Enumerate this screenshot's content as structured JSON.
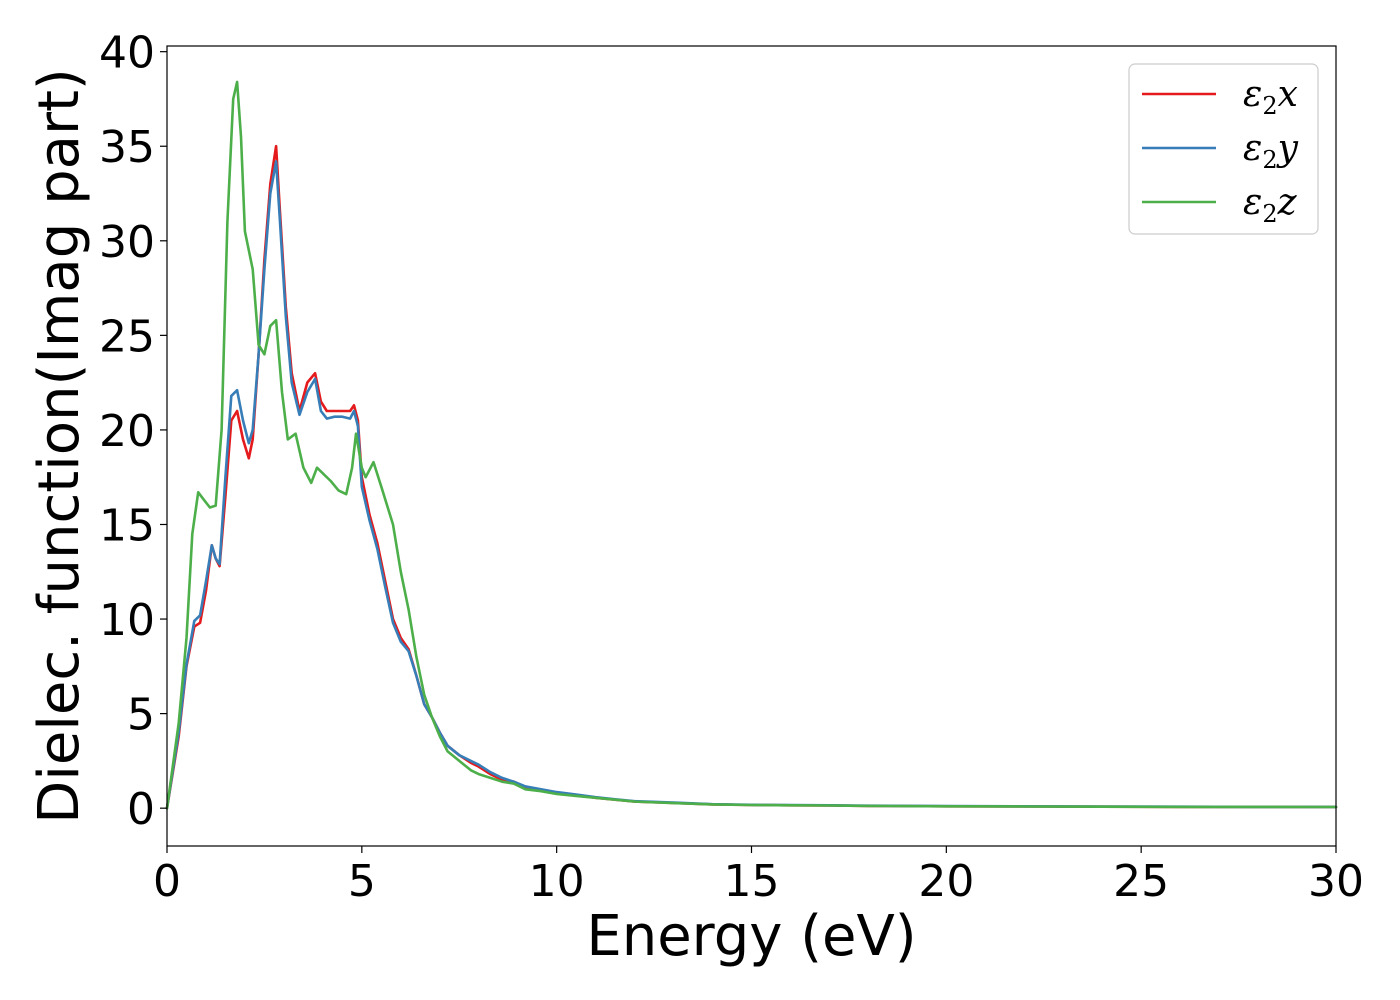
{
  "chart_data": {
    "type": "line",
    "title": "",
    "xlabel": "Energy (eV)",
    "ylabel": "Dielec. function(Imag part)",
    "xlim": [
      0,
      30
    ],
    "ylim": [
      -2,
      40.3
    ],
    "xticks": [
      0,
      5,
      10,
      15,
      20,
      25,
      30
    ],
    "yticks": [
      0,
      5,
      10,
      15,
      20,
      25,
      30,
      35,
      40
    ],
    "grid": false,
    "legend_position": "top-right",
    "series": [
      {
        "name": "ε2x",
        "color": "#e41a1c",
        "x": [
          0,
          0.3,
          0.5,
          0.7,
          0.85,
          1.0,
          1.15,
          1.25,
          1.35,
          1.5,
          1.65,
          1.8,
          1.95,
          2.1,
          2.2,
          2.35,
          2.5,
          2.65,
          2.8,
          2.9,
          3.05,
          3.2,
          3.4,
          3.6,
          3.8,
          3.95,
          4.1,
          4.3,
          4.5,
          4.7,
          4.8,
          4.9,
          5.0,
          5.2,
          5.4,
          5.6,
          5.8,
          6.0,
          6.2,
          6.4,
          6.6,
          6.8,
          7.0,
          7.2,
          7.5,
          7.8,
          8.0,
          8.3,
          8.6,
          8.9,
          9.2,
          9.6,
          10.0,
          10.5,
          11.0,
          11.5,
          12.0,
          13.0,
          14.0,
          15.0,
          16.0,
          17.0,
          18.0,
          20.0,
          22.0,
          24.0,
          26.0,
          28.0,
          30.0
        ],
        "values": [
          0,
          3.8,
          7.5,
          9.6,
          9.8,
          11.5,
          13.9,
          13.2,
          12.8,
          16.5,
          20.5,
          21.0,
          19.5,
          18.5,
          19.5,
          24.0,
          29.0,
          33.0,
          35.0,
          31.5,
          26.5,
          23.0,
          21.0,
          22.5,
          23.0,
          21.5,
          21.0,
          21.0,
          21.0,
          21.0,
          21.3,
          20.5,
          17.5,
          15.5,
          14.0,
          12.0,
          10.0,
          9.0,
          8.4,
          7.0,
          5.5,
          4.8,
          4.0,
          3.3,
          2.8,
          2.4,
          2.2,
          1.8,
          1.5,
          1.4,
          1.1,
          0.95,
          0.8,
          0.7,
          0.55,
          0.45,
          0.35,
          0.28,
          0.2,
          0.17,
          0.15,
          0.14,
          0.12,
          0.1,
          0.09,
          0.08,
          0.07,
          0.07,
          0.06
        ]
      },
      {
        "name": "ε2y",
        "color": "#377eb8",
        "x": [
          0,
          0.3,
          0.5,
          0.7,
          0.85,
          1.0,
          1.15,
          1.25,
          1.35,
          1.5,
          1.65,
          1.8,
          1.95,
          2.1,
          2.2,
          2.35,
          2.5,
          2.65,
          2.8,
          2.9,
          3.05,
          3.2,
          3.4,
          3.6,
          3.8,
          3.95,
          4.1,
          4.3,
          4.5,
          4.7,
          4.8,
          4.9,
          5.0,
          5.2,
          5.4,
          5.6,
          5.8,
          6.0,
          6.2,
          6.4,
          6.6,
          6.8,
          7.0,
          7.2,
          7.5,
          7.8,
          8.0,
          8.3,
          8.6,
          8.9,
          9.2,
          9.6,
          10.0,
          10.5,
          11.0,
          11.5,
          12.0,
          13.0,
          14.0,
          15.0,
          16.0,
          17.0,
          18.0,
          20.0,
          22.0,
          24.0,
          26.0,
          28.0,
          30.0
        ],
        "values": [
          0,
          4.0,
          7.6,
          9.9,
          10.2,
          12.0,
          13.9,
          13.2,
          12.9,
          17.5,
          21.8,
          22.1,
          20.5,
          19.3,
          20.0,
          24.0,
          28.5,
          32.5,
          34.2,
          31.0,
          26.0,
          22.5,
          20.8,
          22.0,
          22.7,
          21.0,
          20.6,
          20.7,
          20.7,
          20.6,
          21.0,
          20.2,
          17.0,
          15.2,
          13.7,
          11.7,
          9.8,
          8.8,
          8.3,
          7.0,
          5.5,
          4.8,
          4.0,
          3.3,
          2.8,
          2.5,
          2.3,
          1.9,
          1.6,
          1.4,
          1.15,
          1.0,
          0.85,
          0.72,
          0.58,
          0.47,
          0.37,
          0.3,
          0.21,
          0.18,
          0.16,
          0.15,
          0.13,
          0.11,
          0.1,
          0.09,
          0.08,
          0.07,
          0.07
        ]
      },
      {
        "name": "ε2z",
        "color": "#4daf4a",
        "x": [
          0,
          0.3,
          0.5,
          0.65,
          0.8,
          0.95,
          1.1,
          1.25,
          1.4,
          1.55,
          1.7,
          1.8,
          1.9,
          2.0,
          2.2,
          2.35,
          2.5,
          2.65,
          2.8,
          2.95,
          3.1,
          3.3,
          3.5,
          3.7,
          3.85,
          4.0,
          4.2,
          4.4,
          4.6,
          4.75,
          4.85,
          5.0,
          5.1,
          5.3,
          5.5,
          5.8,
          6.0,
          6.2,
          6.4,
          6.6,
          6.8,
          7.0,
          7.2,
          7.5,
          7.8,
          8.0,
          8.3,
          8.6,
          8.9,
          9.2,
          9.6,
          10.0,
          10.5,
          11.0,
          11.5,
          12.0,
          13.0,
          14.0,
          15.0,
          16.0,
          17.0,
          18.0,
          20.0,
          22.0,
          24.0,
          26.0,
          28.0,
          30.0
        ],
        "values": [
          0,
          4.5,
          9.0,
          14.5,
          16.7,
          16.3,
          15.9,
          16.0,
          20.0,
          31.0,
          37.5,
          38.4,
          35.5,
          30.5,
          28.5,
          24.5,
          24.0,
          25.5,
          25.8,
          22.0,
          19.5,
          19.8,
          18.0,
          17.2,
          18.0,
          17.7,
          17.3,
          16.8,
          16.6,
          18.0,
          19.8,
          18.0,
          17.5,
          18.3,
          17.0,
          15.0,
          12.5,
          10.5,
          8.0,
          6.0,
          4.8,
          3.8,
          3.0,
          2.5,
          2.0,
          1.8,
          1.6,
          1.4,
          1.3,
          1.0,
          0.9,
          0.75,
          0.65,
          0.55,
          0.45,
          0.35,
          0.27,
          0.2,
          0.17,
          0.15,
          0.14,
          0.12,
          0.1,
          0.09,
          0.08,
          0.07,
          0.07,
          0.06
        ]
      }
    ]
  }
}
